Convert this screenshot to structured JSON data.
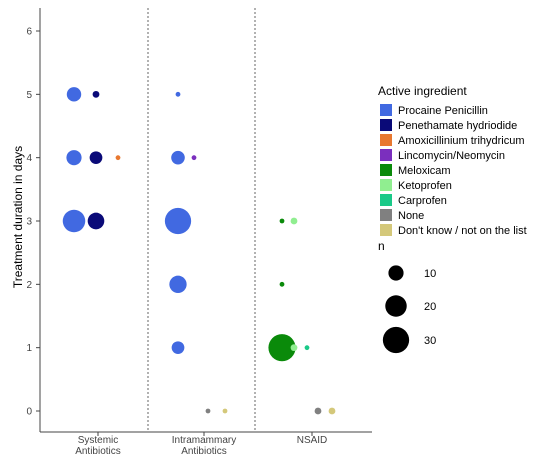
{
  "chart_data": {
    "type": "scatter",
    "ylabel": "Treatment duration in days",
    "ylim": [
      0,
      6
    ],
    "y_ticks": [
      "0",
      "1",
      "2",
      "3",
      "4",
      "5",
      "6"
    ],
    "groups": [
      {
        "label_lines": [
          "Systemic",
          "Antibiotics"
        ]
      },
      {
        "label_lines": [
          "Intramammary",
          "Antibiotics"
        ]
      },
      {
        "label_lines": [
          "NSAID"
        ]
      }
    ],
    "grid": false,
    "legend_position": "right",
    "legend": {
      "color_title": "Active ingredient",
      "color_items": [
        {
          "label": "Procaine Penicillin",
          "color": "#4169E1"
        },
        {
          "label": "Penethamate hydriodide",
          "color": "#0A0A78"
        },
        {
          "label": "Amoxicillinium trihydricum",
          "color": "#E87830"
        },
        {
          "label": "Lincomycin/Neomycin",
          "color": "#7B2FBE"
        },
        {
          "label": "Meloxicam",
          "color": "#0A8A0A"
        },
        {
          "label": "Ketoprofen",
          "color": "#90EE90"
        },
        {
          "label": "Carprofen",
          "color": "#1AC988"
        },
        {
          "label": "None",
          "color": "#808080"
        },
        {
          "label": "Don't know / not on the list",
          "color": "#D4C87A"
        }
      ],
      "size_title": "n",
      "size_items": [
        {
          "label": "10",
          "value": 10
        },
        {
          "label": "20",
          "value": 20
        },
        {
          "label": "30",
          "value": 30
        }
      ]
    },
    "points": [
      {
        "group": "Systemic Antibiotics",
        "ingredient": "Procaine Penicillin",
        "y": 5,
        "n": 9
      },
      {
        "group": "Systemic Antibiotics",
        "ingredient": "Penethamate hydriodide",
        "y": 5,
        "n": 2
      },
      {
        "group": "Systemic Antibiotics",
        "ingredient": "Procaine Penicillin",
        "y": 4,
        "n": 10
      },
      {
        "group": "Systemic Antibiotics",
        "ingredient": "Penethamate hydriodide",
        "y": 4,
        "n": 7
      },
      {
        "group": "Systemic Antibiotics",
        "ingredient": "Amoxicillinium trihydricum",
        "y": 4,
        "n": 1
      },
      {
        "group": "Systemic Antibiotics",
        "ingredient": "Procaine Penicillin",
        "y": 3,
        "n": 22
      },
      {
        "group": "Systemic Antibiotics",
        "ingredient": "Penethamate hydriodide",
        "y": 3,
        "n": 12
      },
      {
        "group": "Intramammary Antibiotics",
        "ingredient": "Procaine Penicillin",
        "y": 5,
        "n": 1
      },
      {
        "group": "Intramammary Antibiotics",
        "ingredient": "Procaine Penicillin",
        "y": 4,
        "n": 8
      },
      {
        "group": "Intramammary Antibiotics",
        "ingredient": "Lincomycin/Neomycin",
        "y": 4,
        "n": 1
      },
      {
        "group": "Intramammary Antibiotics",
        "ingredient": "Procaine Penicillin",
        "y": 3,
        "n": 30
      },
      {
        "group": "Intramammary Antibiotics",
        "ingredient": "Procaine Penicillin",
        "y": 2,
        "n": 13
      },
      {
        "group": "Intramammary Antibiotics",
        "ingredient": "Procaine Penicillin",
        "y": 1,
        "n": 7
      },
      {
        "group": "Intramammary Antibiotics",
        "ingredient": "None",
        "y": 0,
        "n": 1
      },
      {
        "group": "Intramammary Antibiotics",
        "ingredient": "Don't know / not on the list",
        "y": 0,
        "n": 1
      },
      {
        "group": "NSAID",
        "ingredient": "Meloxicam",
        "y": 3,
        "n": 1
      },
      {
        "group": "NSAID",
        "ingredient": "Ketoprofen",
        "y": 3,
        "n": 2
      },
      {
        "group": "NSAID",
        "ingredient": "Meloxicam",
        "y": 2,
        "n": 1
      },
      {
        "group": "NSAID",
        "ingredient": "Meloxicam",
        "y": 1,
        "n": 32
      },
      {
        "group": "NSAID",
        "ingredient": "Ketoprofen",
        "y": 1,
        "n": 2
      },
      {
        "group": "NSAID",
        "ingredient": "Carprofen",
        "y": 1,
        "n": 1
      },
      {
        "group": "NSAID",
        "ingredient": "None",
        "y": 0,
        "n": 2
      },
      {
        "group": "NSAID",
        "ingredient": "Don't know / not on the list",
        "y": 0,
        "n": 2
      }
    ]
  }
}
